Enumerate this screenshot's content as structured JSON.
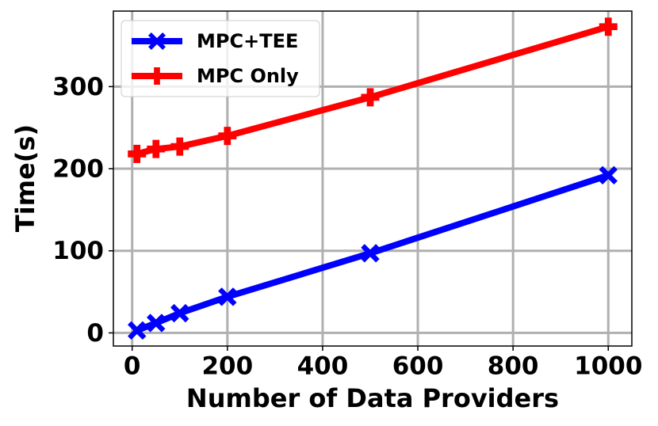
{
  "chart_data": {
    "type": "line",
    "x_label": "Number of Data Providers",
    "y_label": "Time(s)",
    "x": [
      10,
      50,
      100,
      200,
      500,
      1000
    ],
    "series": [
      {
        "name": "MPC+TEE",
        "color": "#0000ff",
        "marker": "X",
        "values": [
          3,
          12,
          24,
          44,
          97,
          192
        ]
      },
      {
        "name": "MPC Only",
        "color": "#ff0000",
        "marker": "P",
        "values": [
          218,
          224,
          227,
          240,
          287,
          373
        ]
      }
    ],
    "xlim": [
      -39.5,
      1049.5
    ],
    "xticks": [
      0,
      200,
      400,
      600,
      800,
      1000
    ],
    "ylim": [
      -16,
      392
    ],
    "yticks": [
      0,
      100,
      200,
      300
    ],
    "grid": true,
    "legend": "upper left"
  }
}
